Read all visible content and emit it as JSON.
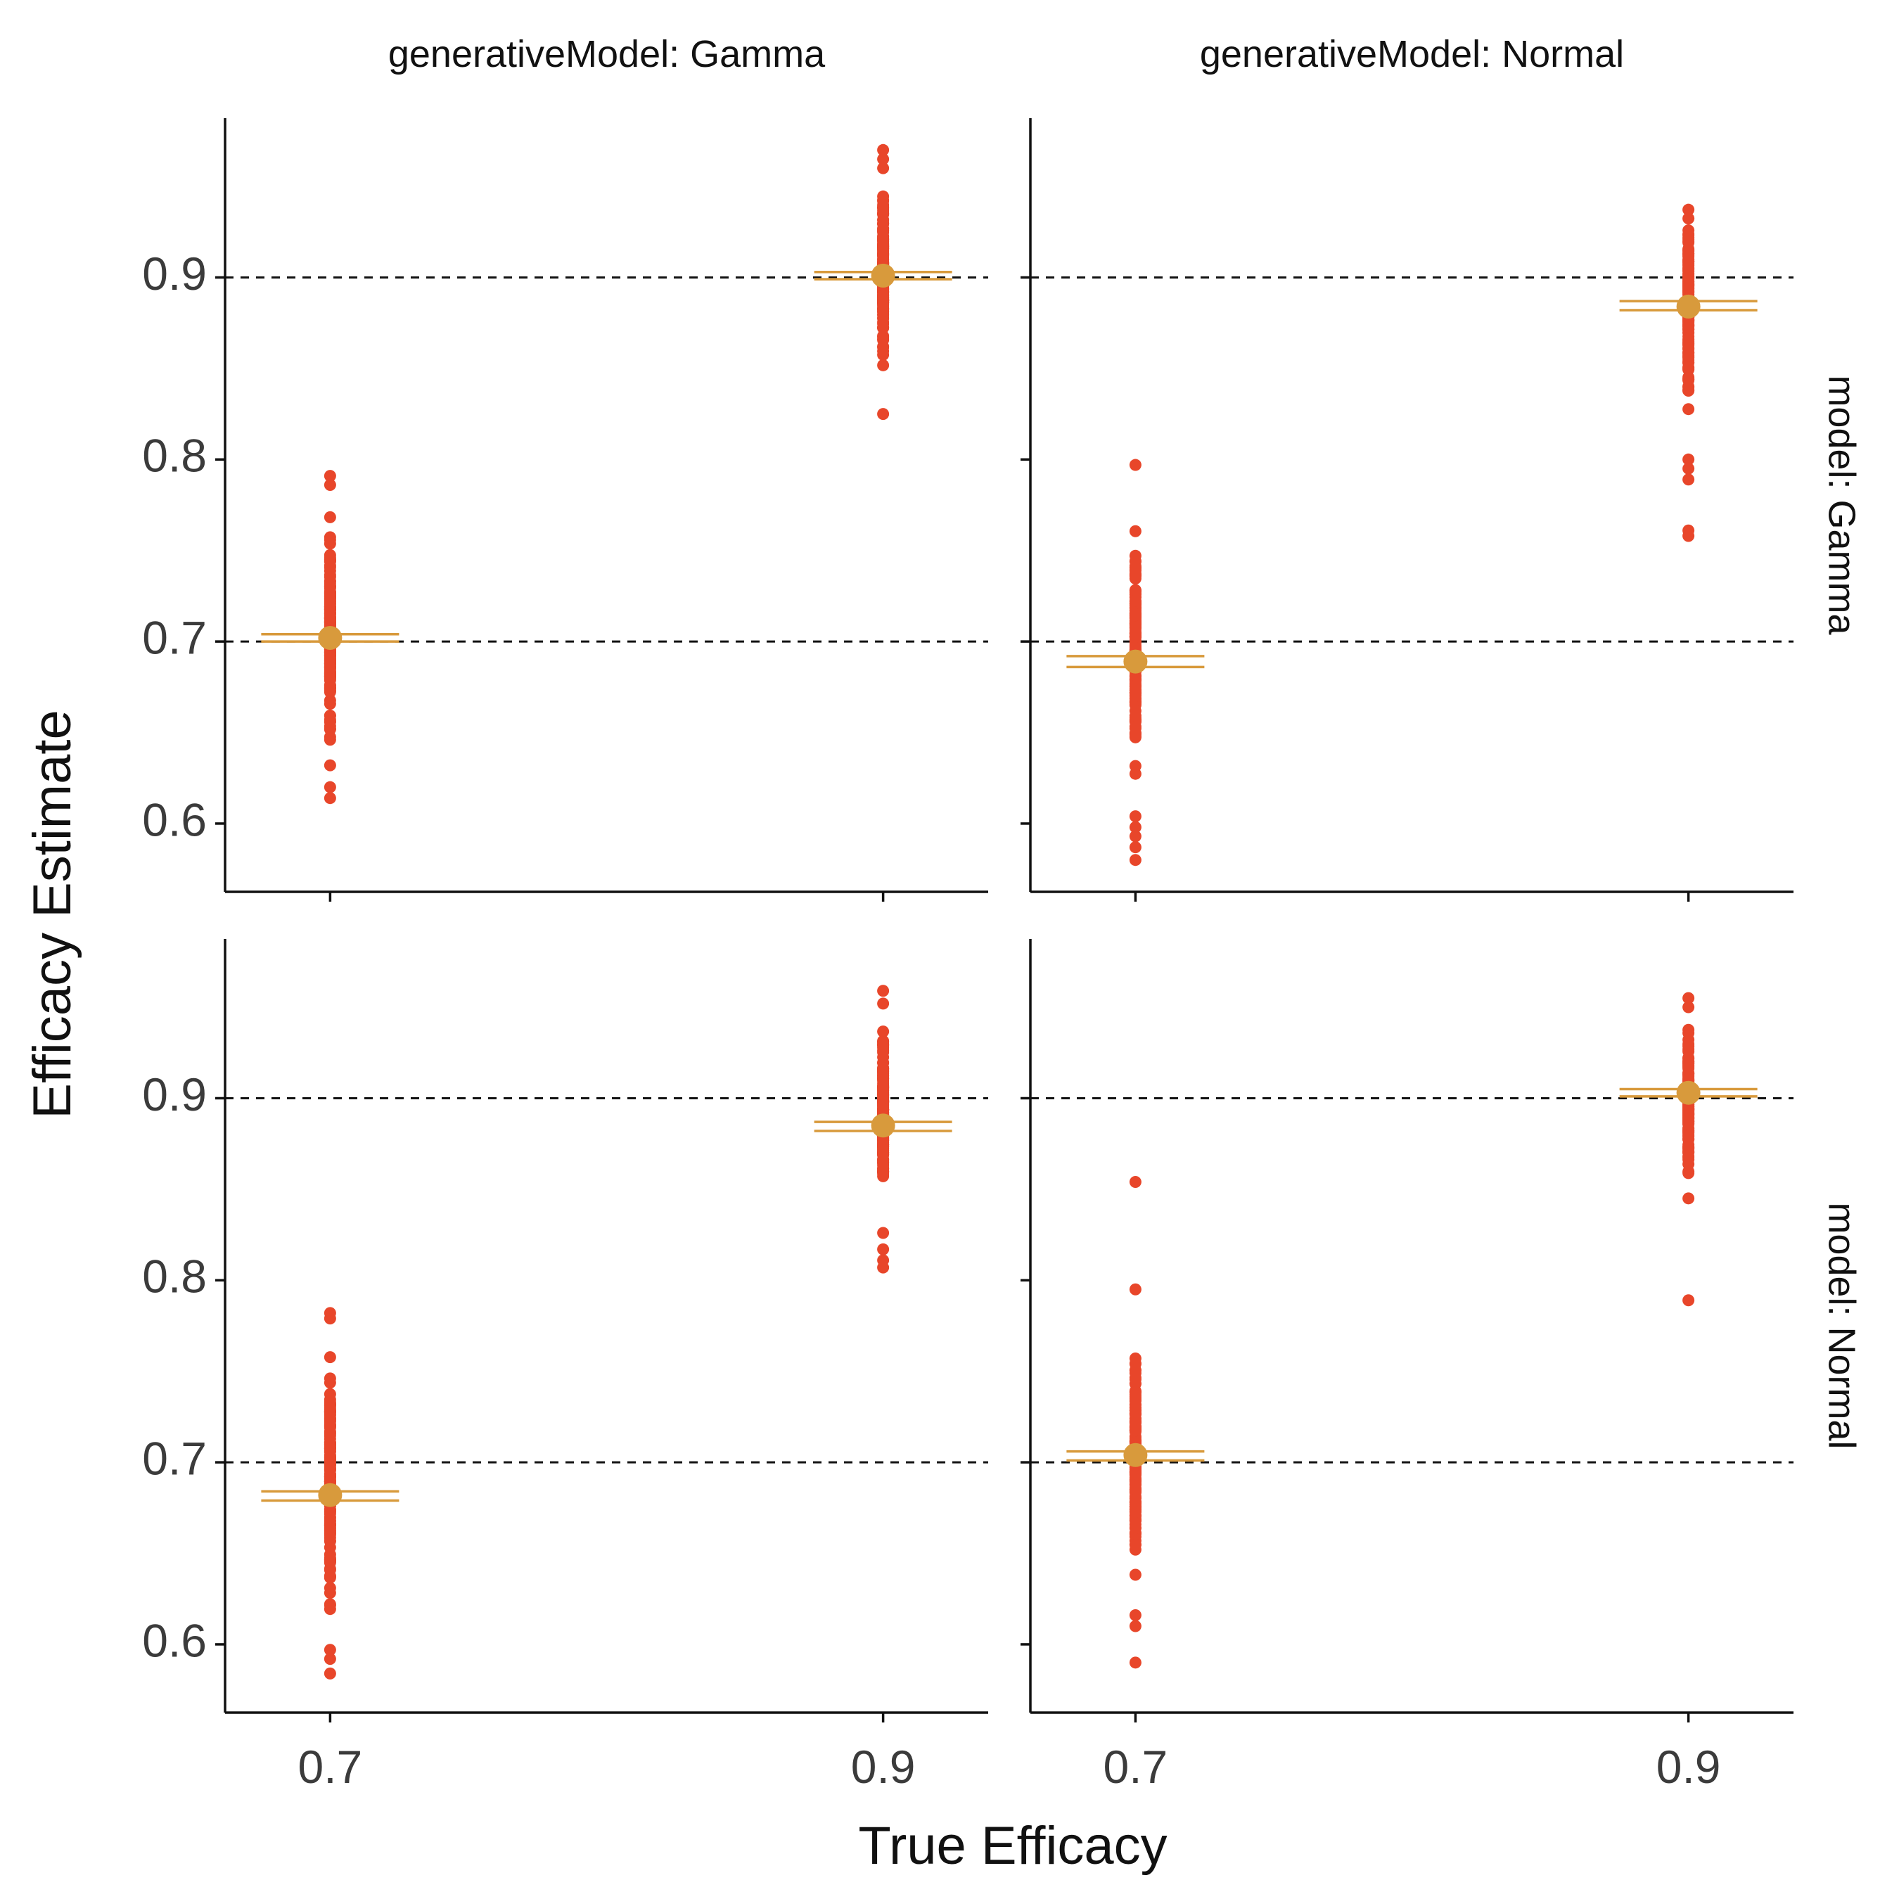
{
  "chart_data": {
    "type": "scatter",
    "facet_cols": [
      "generativeModel: Gamma",
      "generativeModel: Normal"
    ],
    "facet_rows": [
      "model: Gamma",
      "model: Normal"
    ],
    "xlabel": "True Efficacy",
    "ylabel": "Efficacy Estimate",
    "x_ticks": [
      0.7,
      0.9
    ],
    "y_ticks": [
      0.6,
      0.7,
      0.8,
      0.9
    ],
    "x_tick_labels": [
      "0.7",
      "0.9"
    ],
    "y_tick_labels": [
      "0.6",
      "0.7",
      "0.8",
      "0.9"
    ],
    "xlim": [
      0.662,
      0.938
    ],
    "ylim": [
      0.5625,
      0.9875
    ],
    "reference_lines_y": [
      0.7,
      0.9
    ],
    "colors": {
      "points": "#E8462A",
      "mean": "#D89A3C",
      "reference": "#111111"
    },
    "panels": [
      {
        "col": "generativeModel: Gamma",
        "row": "model: Gamma",
        "groups": [
          {
            "x": 0.7,
            "mean": 0.702,
            "ci": [
              0.7,
              0.704
            ],
            "range": [
              0.629,
              0.776
            ],
            "outliers": [
              0.614,
              0.62,
              0.632,
              0.786,
              0.791
            ]
          },
          {
            "x": 0.9,
            "mean": 0.901,
            "ci": [
              0.899,
              0.903
            ],
            "range": [
              0.849,
              0.955
            ],
            "outliers": [
              0.825,
              0.96,
              0.965,
              0.97
            ]
          }
        ]
      },
      {
        "col": "generativeModel: Normal",
        "row": "model: Gamma",
        "groups": [
          {
            "x": 0.7,
            "mean": 0.689,
            "ci": [
              0.686,
              0.692
            ],
            "range": [
              0.616,
              0.778
            ],
            "outliers": [
              0.58,
              0.587,
              0.593,
              0.598,
              0.604,
              0.797
            ]
          },
          {
            "x": 0.9,
            "mean": 0.884,
            "ci": [
              0.882,
              0.887
            ],
            "range": [
              0.819,
              0.949
            ],
            "outliers": [
              0.758,
              0.761,
              0.789,
              0.795,
              0.8
            ]
          }
        ]
      },
      {
        "col": "generativeModel: Gamma",
        "row": "model: Normal",
        "groups": [
          {
            "x": 0.7,
            "mean": 0.682,
            "ci": [
              0.679,
              0.684
            ],
            "range": [
              0.606,
              0.769
            ],
            "outliers": [
              0.584,
              0.592,
              0.597,
              0.779,
              0.782
            ]
          },
          {
            "x": 0.9,
            "mean": 0.885,
            "ci": [
              0.882,
              0.887
            ],
            "range": [
              0.831,
              0.946
            ],
            "outliers": [
              0.807,
              0.811,
              0.817,
              0.826,
              0.952,
              0.959
            ]
          }
        ]
      },
      {
        "col": "generativeModel: Normal",
        "row": "model: Normal",
        "groups": [
          {
            "x": 0.7,
            "mean": 0.704,
            "ci": [
              0.701,
              0.706
            ],
            "range": [
              0.626,
              0.779
            ],
            "outliers": [
              0.59,
              0.61,
              0.616,
              0.795,
              0.854
            ]
          },
          {
            "x": 0.9,
            "mean": 0.903,
            "ci": [
              0.901,
              0.905
            ],
            "range": [
              0.849,
              0.945
            ],
            "outliers": [
              0.789,
              0.845,
              0.95,
              0.955
            ]
          }
        ]
      }
    ]
  }
}
